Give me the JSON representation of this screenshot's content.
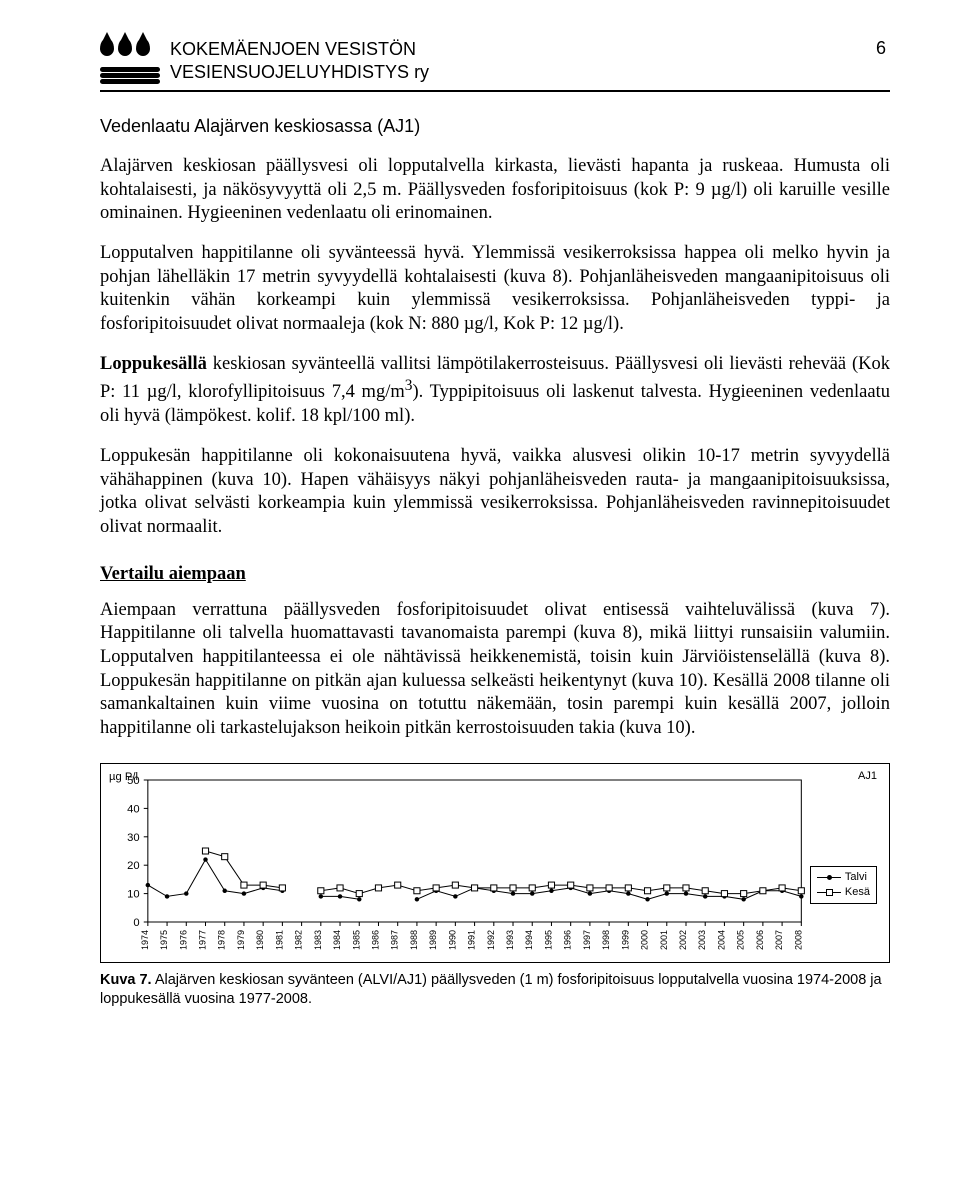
{
  "header": {
    "org_line1": "KOKEMÄENJOEN VESISTÖN",
    "org_line2": "VESIENSUOJELUYHDISTYS ry",
    "page_number": "6"
  },
  "section_heading": "Vedenlaatu Alajärven keskiosassa (AJ1)",
  "paragraphs": {
    "p1": "Alajärven keskiosan päällysvesi oli lopputalvella kirkasta, lievästi hapanta ja ruskeaa. Humusta oli kohtalaisesti, ja näkösyvyyttä oli 2,5 m. Päällysveden fosforipitoisuus (kok P: 9 µg/l) oli karuille vesille ominainen. Hygieeninen vedenlaatu oli erinomainen.",
    "p2": "Lopputalven happitilanne oli syvänteessä hyvä. Ylemmissä vesikerroksissa happea oli melko hyvin ja pohjan lähelläkin 17 metrin syvyydellä kohtalaisesti (kuva 8). Pohjanläheisveden mangaanipitoisuus oli kuitenkin vähän korkeampi kuin ylemmissä vesikerroksissa. Pohjanläheisveden typpi- ja fosforipitoisuudet olivat normaaleja (kok N: 880 µg/l, Kok P: 12 µg/l).",
    "p3_html": "<b>Loppukesällä</b> keskiosan syvänteellä vallitsi lämpötilakerrosteisuus. Päällysvesi oli lievästi rehevää (Kok P: 11 µg/l, klorofyllipitoisuus 7,4 mg/m<sup>3</sup>). Typpipitoisuus oli laskenut talvesta. Hygieeninen vedenlaatu oli hyvä (lämpökest. kolif. 18 kpl/100 ml).",
    "p4": "Loppukesän happitilanne oli kokonaisuutena hyvä, vaikka alusvesi olikin 10-17 metrin syvyydellä vähähappinen (kuva 10). Hapen vähäisyys näkyi pohjanläheisveden rauta- ja mangaanipitoisuuksissa, jotka olivat selvästi korkeampia kuin ylemmissä vesikerroksissa. Pohjanläheisveden ravinnepitoisuudet olivat normaalit.",
    "comparison_heading": "Vertailu aiempaan",
    "p5": "Aiempaan verrattuna päällysveden fosforipitoisuudet olivat entisessä vaihteluvälissä (kuva 7). Happitilanne oli talvella huomattavasti tavanomaista parempi (kuva 8), mikä liittyi runsaisiin valumiin. Lopputalven happitilanteessa ei ole nähtävissä heikkenemistä, toisin kuin Järviöistenselällä (kuva 8). Loppukesän happitilanne on pitkän ajan kuluessa selkeästi heikentynyt (kuva 10). Kesällä 2008 tilanne oli samankaltainen kuin viime vuosina on totuttu näkemään, tosin parempi kuin kesällä 2007, jolloin happitilanne oli tarkastelujakson heikoin pitkän kerrostoisuuden takia (kuva 10)."
  },
  "chart": {
    "type": "line",
    "y_axis_label": "µg P/l",
    "title_right": "AJ1",
    "ylim": [
      0,
      50
    ],
    "ytick_step": 10,
    "y_ticks": [
      0,
      10,
      20,
      30,
      40,
      50
    ],
    "x_years": [
      1974,
      1975,
      1976,
      1977,
      1978,
      1979,
      1980,
      1981,
      1982,
      1983,
      1984,
      1985,
      1986,
      1987,
      1988,
      1989,
      1990,
      1991,
      1992,
      1993,
      1994,
      1995,
      1996,
      1997,
      1998,
      1999,
      2000,
      2001,
      2002,
      2003,
      2004,
      2005,
      2006,
      2007,
      2008
    ],
    "series": [
      {
        "name": "Talvi",
        "marker": "dot",
        "color": "#000000",
        "values": [
          13,
          9,
          10,
          22,
          11,
          10,
          12,
          11,
          null,
          9,
          9,
          8,
          null,
          null,
          8,
          11,
          9,
          12,
          11,
          10,
          10,
          11,
          12,
          10,
          11,
          10,
          8,
          10,
          10,
          9,
          9,
          8,
          11,
          11,
          9
        ]
      },
      {
        "name": "Kesä",
        "marker": "square",
        "color": "#000000",
        "values": [
          null,
          null,
          null,
          25,
          23,
          13,
          13,
          12,
          null,
          11,
          12,
          10,
          12,
          13,
          11,
          12,
          13,
          12,
          12,
          12,
          12,
          13,
          13,
          12,
          12,
          12,
          11,
          12,
          12,
          11,
          10,
          10,
          11,
          12,
          11
        ]
      }
    ],
    "background_color": "#ffffff",
    "axis_color": "#000000",
    "font_family": "Arial",
    "label_fontsize": 11,
    "x_tick_fontsize": 9,
    "line_width": 1
  },
  "legend": {
    "items": [
      {
        "label": "Talvi",
        "marker": "dot"
      },
      {
        "label": "Kesä",
        "marker": "square"
      }
    ]
  },
  "caption": {
    "bold": "Kuva 7.",
    "text": " Alajärven keskiosan syvänteen (ALVI/AJ1) päällysveden (1 m) fosforipitoisuus lopputalvella vuosina 1974-2008 ja loppukesällä vuosina 1977-2008."
  }
}
